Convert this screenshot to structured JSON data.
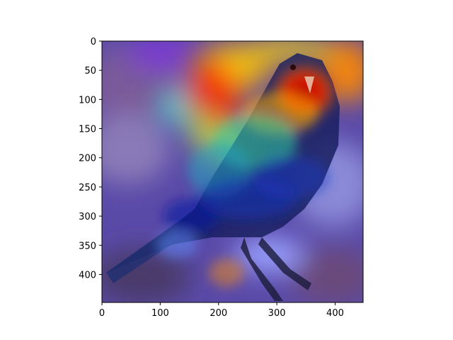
{
  "chart_data": {
    "type": "heatmap",
    "description_of_image": "",
    "x_ticks": [
      "0",
      "100",
      "200",
      "300",
      "400"
    ],
    "y_ticks": [
      "0",
      "50",
      "100",
      "150",
      "200",
      "250",
      "300",
      "350",
      "400"
    ],
    "xlim": [
      0,
      448
    ],
    "ylim": [
      448,
      0
    ],
    "grid": false,
    "colormap": "jet"
  }
}
